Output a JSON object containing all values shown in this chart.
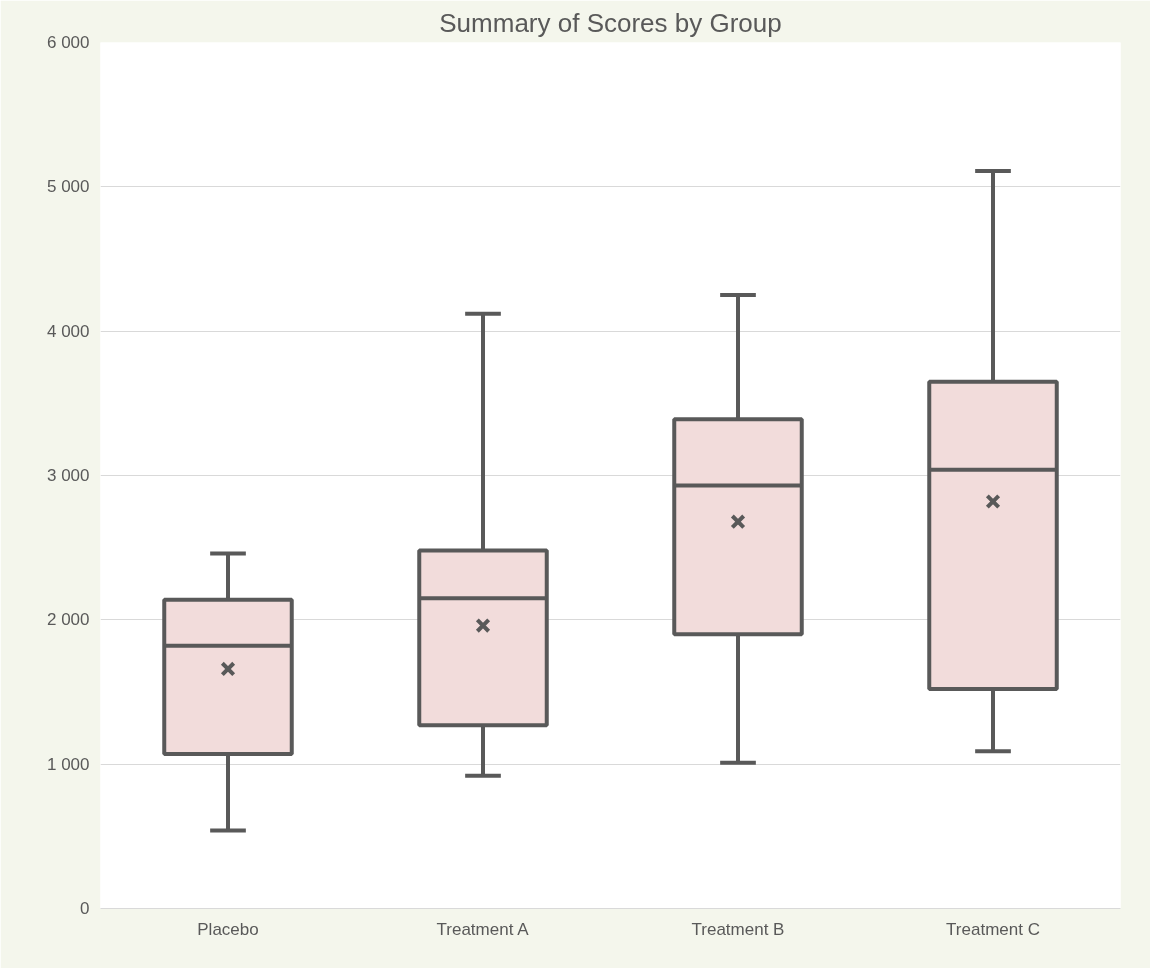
{
  "chart_data": {
    "type": "box",
    "title": "Summary of Scores by Group",
    "categories": [
      "Placebo",
      "Treatment A",
      "Treatment B",
      "Treatment C"
    ],
    "boxes": [
      {
        "low": 540,
        "q1": 1070,
        "median": 1820,
        "q3": 2140,
        "high": 2460,
        "mean": 1660
      },
      {
        "low": 920,
        "q1": 1270,
        "median": 2150,
        "q3": 2480,
        "high": 4120,
        "mean": 1960
      },
      {
        "low": 1010,
        "q1": 1900,
        "median": 2930,
        "q3": 3390,
        "high": 4250,
        "mean": 2680
      },
      {
        "low": 1090,
        "q1": 1520,
        "median": 3040,
        "q3": 3650,
        "high": 5110,
        "mean": 2820
      }
    ],
    "color": "#f2dcdb",
    "ylim": [
      0,
      6000
    ],
    "yticks": [
      0,
      {
        "value": 1000,
        "label": "1 000"
      },
      {
        "value": 2000,
        "label": "2 000"
      },
      {
        "value": 3000,
        "label": "3 000"
      },
      {
        "value": 4000,
        "label": "4 000"
      },
      {
        "value": 5000,
        "label": "5 000"
      },
      {
        "value": 6000,
        "label": "6 000"
      }
    ],
    "grid": "y"
  }
}
